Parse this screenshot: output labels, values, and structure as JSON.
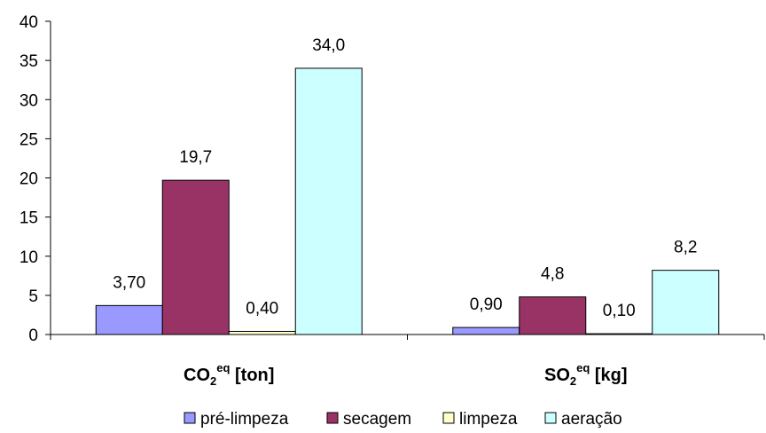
{
  "chart_data": {
    "type": "bar",
    "categories": [
      {
        "main": "CO",
        "sub": "2",
        "sup": "eq",
        "rest": " [ton]"
      },
      {
        "main": "SO",
        "sub": "2",
        "sup": "eq",
        "rest": " [kg]"
      }
    ],
    "series": [
      {
        "name": "pré-limpeza",
        "color": "#9999ff",
        "values": [
          3.7,
          0.9
        ],
        "labels": [
          "3,70",
          "0,90"
        ]
      },
      {
        "name": "secagem",
        "color": "#993366",
        "values": [
          19.7,
          4.8
        ],
        "labels": [
          "19,7",
          "4,8"
        ]
      },
      {
        "name": "limpeza",
        "color": "#ffffcc",
        "values": [
          0.4,
          0.1
        ],
        "labels": [
          "0,40",
          "0,10"
        ]
      },
      {
        "name": "aeração",
        "color": "#ccffff",
        "values": [
          34.0,
          8.2
        ],
        "labels": [
          "34,0",
          "8,2"
        ]
      }
    ],
    "ylim": [
      0,
      40
    ],
    "yticks": [
      0,
      5,
      10,
      15,
      20,
      25,
      30,
      35,
      40
    ],
    "grid": false,
    "legend_position": "bottom"
  }
}
